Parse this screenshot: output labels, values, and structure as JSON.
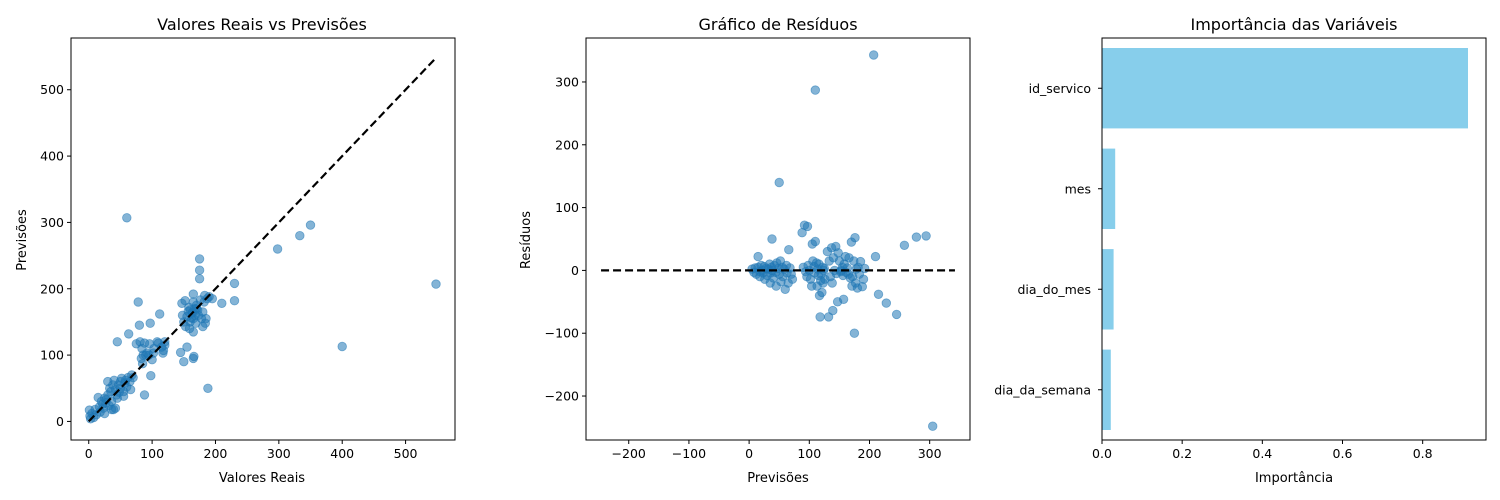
{
  "chart_data": [
    {
      "type": "scatter",
      "title": "Valores Reais vs Previsões",
      "xlabel": "Valores Reais",
      "ylabel": "Previsões",
      "xlim": [
        -28,
        578
      ],
      "ylim": [
        -28,
        578
      ],
      "xticks": [
        0,
        100,
        200,
        300,
        400,
        500
      ],
      "yticks": [
        0,
        100,
        200,
        300,
        400,
        500
      ],
      "point_color": "#1f77b4",
      "point_opacity": 0.55,
      "reference_line": {
        "from": [
          0,
          0
        ],
        "to": [
          548,
          548
        ],
        "color": "#000000",
        "style": "dashed"
      },
      "grid": false,
      "points": [
        [
          1,
          17
        ],
        [
          2,
          8
        ],
        [
          3,
          4
        ],
        [
          5,
          12
        ],
        [
          8,
          6
        ],
        [
          10,
          18
        ],
        [
          12,
          10
        ],
        [
          15,
          36
        ],
        [
          17,
          22
        ],
        [
          18,
          14
        ],
        [
          20,
          30
        ],
        [
          22,
          26
        ],
        [
          23,
          20
        ],
        [
          25,
          12
        ],
        [
          25,
          35
        ],
        [
          27,
          28
        ],
        [
          28,
          33
        ],
        [
          30,
          40
        ],
        [
          30,
          60
        ],
        [
          32,
          24
        ],
        [
          33,
          50
        ],
        [
          35,
          45
        ],
        [
          36,
          30
        ],
        [
          36,
          18
        ],
        [
          38,
          55
        ],
        [
          39,
          18
        ],
        [
          40,
          62
        ],
        [
          42,
          20
        ],
        [
          42,
          48
        ],
        [
          44,
          40
        ],
        [
          45,
          120
        ],
        [
          45,
          35
        ],
        [
          47,
          55
        ],
        [
          48,
          44
        ],
        [
          50,
          60
        ],
        [
          50,
          50
        ],
        [
          52,
          65
        ],
        [
          55,
          45
        ],
        [
          55,
          38
        ],
        [
          57,
          58
        ],
        [
          58,
          62
        ],
        [
          60,
          52
        ],
        [
          60,
          307
        ],
        [
          62,
          66
        ],
        [
          63,
          132
        ],
        [
          65,
          60
        ],
        [
          66,
          48
        ],
        [
          68,
          70
        ],
        [
          70,
          66
        ],
        [
          75,
          117
        ],
        [
          78,
          180
        ],
        [
          80,
          145
        ],
        [
          81,
          120
        ],
        [
          83,
          95
        ],
        [
          84,
          110
        ],
        [
          85,
          87
        ],
        [
          86,
          100
        ],
        [
          88,
          118
        ],
        [
          88,
          40
        ],
        [
          90,
          100
        ],
        [
          92,
          103
        ],
        [
          95,
          100
        ],
        [
          96,
          117
        ],
        [
          97,
          148
        ],
        [
          98,
          69
        ],
        [
          100,
          93
        ],
        [
          102,
          103
        ],
        [
          103,
          110
        ],
        [
          108,
          120
        ],
        [
          110,
          118
        ],
        [
          112,
          162
        ],
        [
          115,
          112
        ],
        [
          117,
          103
        ],
        [
          118,
          107
        ],
        [
          120,
          115
        ],
        [
          120,
          120
        ],
        [
          145,
          104
        ],
        [
          147,
          178
        ],
        [
          148,
          160
        ],
        [
          150,
          150
        ],
        [
          150,
          90
        ],
        [
          152,
          182
        ],
        [
          153,
          143
        ],
        [
          155,
          112
        ],
        [
          155,
          158
        ],
        [
          157,
          166
        ],
        [
          158,
          172
        ],
        [
          159,
          140
        ],
        [
          160,
          150
        ],
        [
          160,
          168
        ],
        [
          162,
          156
        ],
        [
          163,
          163
        ],
        [
          164,
          165
        ],
        [
          165,
          180
        ],
        [
          165,
          192
        ],
        [
          165,
          135
        ],
        [
          165,
          95
        ],
        [
          165,
          155
        ],
        [
          166,
          98
        ],
        [
          167,
          170
        ],
        [
          168,
          160
        ],
        [
          169,
          148
        ],
        [
          170,
          175
        ],
        [
          170,
          170
        ],
        [
          172,
          168
        ],
        [
          173,
          160
        ],
        [
          175,
          245
        ],
        [
          175,
          228
        ],
        [
          175,
          215
        ],
        [
          176,
          183
        ],
        [
          178,
          155
        ],
        [
          180,
          165
        ],
        [
          180,
          143
        ],
        [
          182,
          180
        ],
        [
          183,
          190
        ],
        [
          184,
          148
        ],
        [
          185,
          155
        ],
        [
          187,
          185
        ],
        [
          188,
          50
        ],
        [
          190,
          188
        ],
        [
          195,
          185
        ],
        [
          210,
          178
        ],
        [
          230,
          208
        ],
        [
          230,
          182
        ],
        [
          298,
          260
        ],
        [
          333,
          280
        ],
        [
          350,
          296
        ],
        [
          400,
          113
        ],
        [
          548,
          207
        ]
      ]
    },
    {
      "type": "scatter",
      "title": "Gráfico de Resíduos",
      "xlabel": "Previsões",
      "ylabel": "Resíduos",
      "xlim": [
        -271,
        367
      ],
      "ylim": [
        -270,
        370
      ],
      "xticks": [
        -200,
        -100,
        0,
        100,
        200,
        300
      ],
      "yticks": [
        -200,
        -100,
        0,
        100,
        200,
        300
      ],
      "point_color": "#1f77b4",
      "point_opacity": 0.55,
      "reference_line": {
        "from": [
          -246,
          0
        ],
        "to": [
          342,
          0
        ],
        "color": "#000000",
        "style": "dashed"
      },
      "grid": false,
      "points": [
        [
          5,
          2
        ],
        [
          8,
          -3
        ],
        [
          10,
          4
        ],
        [
          12,
          -6
        ],
        [
          15,
          22
        ],
        [
          15,
          5
        ],
        [
          18,
          -2
        ],
        [
          18,
          -10
        ],
        [
          20,
          8
        ],
        [
          22,
          0
        ],
        [
          23,
          -4
        ],
        [
          25,
          6
        ],
        [
          26,
          -14
        ],
        [
          28,
          3
        ],
        [
          30,
          -8
        ],
        [
          32,
          2
        ],
        [
          34,
          10
        ],
        [
          35,
          -20
        ],
        [
          36,
          -4
        ],
        [
          37,
          5
        ],
        [
          38,
          50
        ],
        [
          38,
          0
        ],
        [
          40,
          -12
        ],
        [
          42,
          8
        ],
        [
          44,
          -3
        ],
        [
          45,
          -25
        ],
        [
          46,
          12
        ],
        [
          48,
          3
        ],
        [
          50,
          140
        ],
        [
          50,
          -6
        ],
        [
          52,
          15
        ],
        [
          53,
          -18
        ],
        [
          55,
          5
        ],
        [
          56,
          -10
        ],
        [
          58,
          2
        ],
        [
          60,
          -30
        ],
        [
          62,
          8
        ],
        [
          63,
          -4
        ],
        [
          65,
          -20
        ],
        [
          66,
          33
        ],
        [
          68,
          4
        ],
        [
          70,
          -6
        ],
        [
          72,
          -14
        ],
        [
          88,
          60
        ],
        [
          90,
          5
        ],
        [
          92,
          72
        ],
        [
          94,
          -2
        ],
        [
          96,
          -10
        ],
        [
          97,
          70
        ],
        [
          98,
          8
        ],
        [
          100,
          0
        ],
        [
          102,
          -14
        ],
        [
          104,
          -25
        ],
        [
          105,
          42
        ],
        [
          106,
          15
        ],
        [
          108,
          6
        ],
        [
          109,
          -4
        ],
        [
          110,
          287
        ],
        [
          110,
          46
        ],
        [
          112,
          12
        ],
        [
          113,
          -25
        ],
        [
          114,
          2
        ],
        [
          115,
          -8
        ],
        [
          116,
          10
        ],
        [
          117,
          -40
        ],
        [
          118,
          -74
        ],
        [
          119,
          -16
        ],
        [
          120,
          -6
        ],
        [
          121,
          -35
        ],
        [
          122,
          5
        ],
        [
          123,
          -20
        ],
        [
          124,
          0
        ],
        [
          125,
          3
        ],
        [
          126,
          -14
        ],
        [
          130,
          30
        ],
        [
          132,
          -74
        ],
        [
          133,
          15
        ],
        [
          135,
          -10
        ],
        [
          137,
          36
        ],
        [
          138,
          -20
        ],
        [
          139,
          -64
        ],
        [
          140,
          20
        ],
        [
          142,
          0
        ],
        [
          144,
          38
        ],
        [
          145,
          -5
        ],
        [
          147,
          -50
        ],
        [
          148,
          28
        ],
        [
          150,
          15
        ],
        [
          152,
          -2
        ],
        [
          153,
          0
        ],
        [
          155,
          5
        ],
        [
          156,
          -8
        ],
        [
          157,
          -46
        ],
        [
          158,
          10
        ],
        [
          160,
          22
        ],
        [
          161,
          -3
        ],
        [
          163,
          4
        ],
        [
          165,
          -6
        ],
        [
          166,
          20
        ],
        [
          168,
          -12
        ],
        [
          170,
          45
        ],
        [
          171,
          -25
        ],
        [
          172,
          -10
        ],
        [
          174,
          15
        ],
        [
          175,
          -100
        ],
        [
          176,
          52
        ],
        [
          177,
          -20
        ],
        [
          178,
          2
        ],
        [
          180,
          -28
        ],
        [
          181,
          5
        ],
        [
          183,
          -6
        ],
        [
          185,
          14
        ],
        [
          188,
          -26
        ],
        [
          190,
          -14
        ],
        [
          192,
          3
        ],
        [
          207,
          343
        ],
        [
          210,
          22
        ],
        [
          215,
          -38
        ],
        [
          228,
          -52
        ],
        [
          245,
          -70
        ],
        [
          258,
          40
        ],
        [
          278,
          53
        ],
        [
          294,
          55
        ],
        [
          305,
          -248
        ]
      ]
    },
    {
      "type": "bar",
      "orientation": "horizontal",
      "title": "Importância das Variáveis",
      "xlabel": "Importância",
      "ylabel": "",
      "categories": [
        "id_servico",
        "mes",
        "dia_do_mes",
        "dia_da_semana"
      ],
      "values": [
        0.913,
        0.033,
        0.029,
        0.022
      ],
      "xlim": [
        0,
        0.958
      ],
      "xticks": [
        0.0,
        0.2,
        0.4,
        0.6,
        0.8
      ],
      "bar_color": "#87ceeb",
      "grid": false
    }
  ]
}
